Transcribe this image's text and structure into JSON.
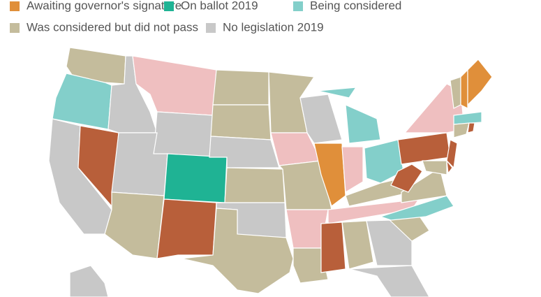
{
  "legend": [
    {
      "name": "Awaiting governor's signature",
      "color": "#e08f3a"
    },
    {
      "name": "On ballot 2019",
      "color": "#1fb394"
    },
    {
      "name": "Being considered",
      "color": "#83cfca"
    },
    {
      "name": "Was considered but did not pass",
      "color": "#c4bc9c"
    },
    {
      "name": "No legislation 2019",
      "color": "#c8c8c8"
    }
  ]
}
